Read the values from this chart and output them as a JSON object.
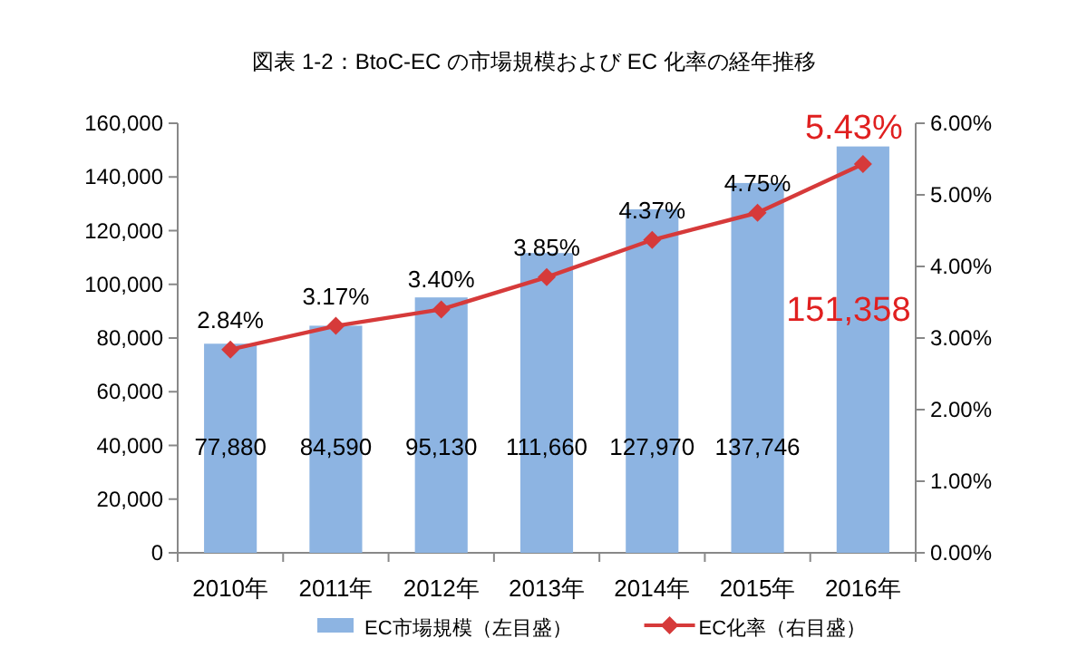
{
  "chart_data": {
    "type": "bar",
    "title": "図表 1-2：BtoC-EC の市場規模および EC 化率の経年推移",
    "categories": [
      "2010年",
      "2011年",
      "2012年",
      "2013年",
      "2014年",
      "2015年",
      "2016年"
    ],
    "series": [
      {
        "name": "EC市場規模（左目盛）",
        "color": "#8db4e2",
        "values": [
          77880,
          84590,
          95130,
          111660,
          127970,
          137746,
          151358
        ],
        "value_labels": [
          "77,880",
          "84,590",
          "95,130",
          "111,660",
          "127,970",
          "137,746",
          "151,358"
        ]
      },
      {
        "name": "EC化率（右目盛）",
        "type": "line",
        "axis": "y2",
        "color": "#d63a3a",
        "marker": "diamond",
        "values": [
          2.84,
          3.17,
          3.4,
          3.85,
          4.37,
          4.75,
          5.43
        ],
        "value_labels": [
          "2.84%",
          "3.17%",
          "3.40%",
          "3.85%",
          "4.37%",
          "4.75%",
          "5.43%"
        ]
      }
    ],
    "ylim": [
      0,
      160000
    ],
    "yticks": [
      0,
      {
        "value": 20000,
        "label": "20,000"
      },
      {
        "value": 40000,
        "label": "40,000"
      },
      {
        "value": 60000,
        "label": "60,000"
      },
      {
        "value": 80000,
        "label": "80,000"
      },
      {
        "value": 100000,
        "label": "100,000"
      },
      {
        "value": 120000,
        "label": "120,000"
      },
      {
        "value": 140000,
        "label": "140,000"
      },
      {
        "value": 160000,
        "label": "160,000"
      }
    ],
    "y2lim": [
      0,
      6
    ],
    "y2ticks": [
      {
        "value": 0,
        "label": "0.00%"
      },
      {
        "value": 1,
        "label": "1.00%"
      },
      {
        "value": 2,
        "label": "2.00%"
      },
      {
        "value": 3,
        "label": "3.00%"
      },
      {
        "value": 4,
        "label": "4.00%"
      },
      {
        "value": 5,
        "label": "5.00%"
      },
      {
        "value": 6,
        "label": "6.00%"
      }
    ],
    "grid": false,
    "legend": "bottom"
  }
}
